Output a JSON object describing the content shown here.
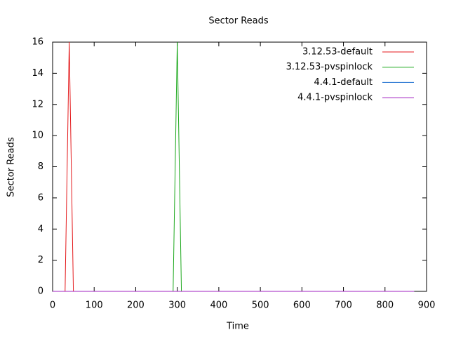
{
  "chart_data": {
    "type": "line",
    "title": "Sector Reads",
    "xlabel": "Time",
    "ylabel": "Sector Reads",
    "xlim": [
      0,
      900
    ],
    "xticks": [
      0,
      100,
      200,
      300,
      400,
      500,
      600,
      700,
      800,
      900
    ],
    "ylim": [
      0,
      16
    ],
    "yticks": [
      0,
      2,
      4,
      6,
      8,
      10,
      12,
      14,
      16
    ],
    "legend": "top-right",
    "series": [
      {
        "name": "3.12.53-default",
        "color": "#e41a1c",
        "x": [
          0,
          30,
          40,
          50,
          870
        ],
        "values": [
          0,
          0,
          16,
          0,
          0
        ]
      },
      {
        "name": "3.12.53-pvspinlock",
        "color": "#1ca81c",
        "x": [
          0,
          290,
          300,
          310,
          870
        ],
        "values": [
          0,
          0,
          16,
          0,
          0
        ]
      },
      {
        "name": "4.4.1-default",
        "color": "#1e6fd0",
        "x": [
          0,
          870
        ],
        "values": [
          0,
          0
        ]
      },
      {
        "name": "4.4.1-pvspinlock",
        "color": "#a020c0",
        "x": [
          0,
          870
        ],
        "values": [
          0,
          0
        ]
      }
    ]
  }
}
